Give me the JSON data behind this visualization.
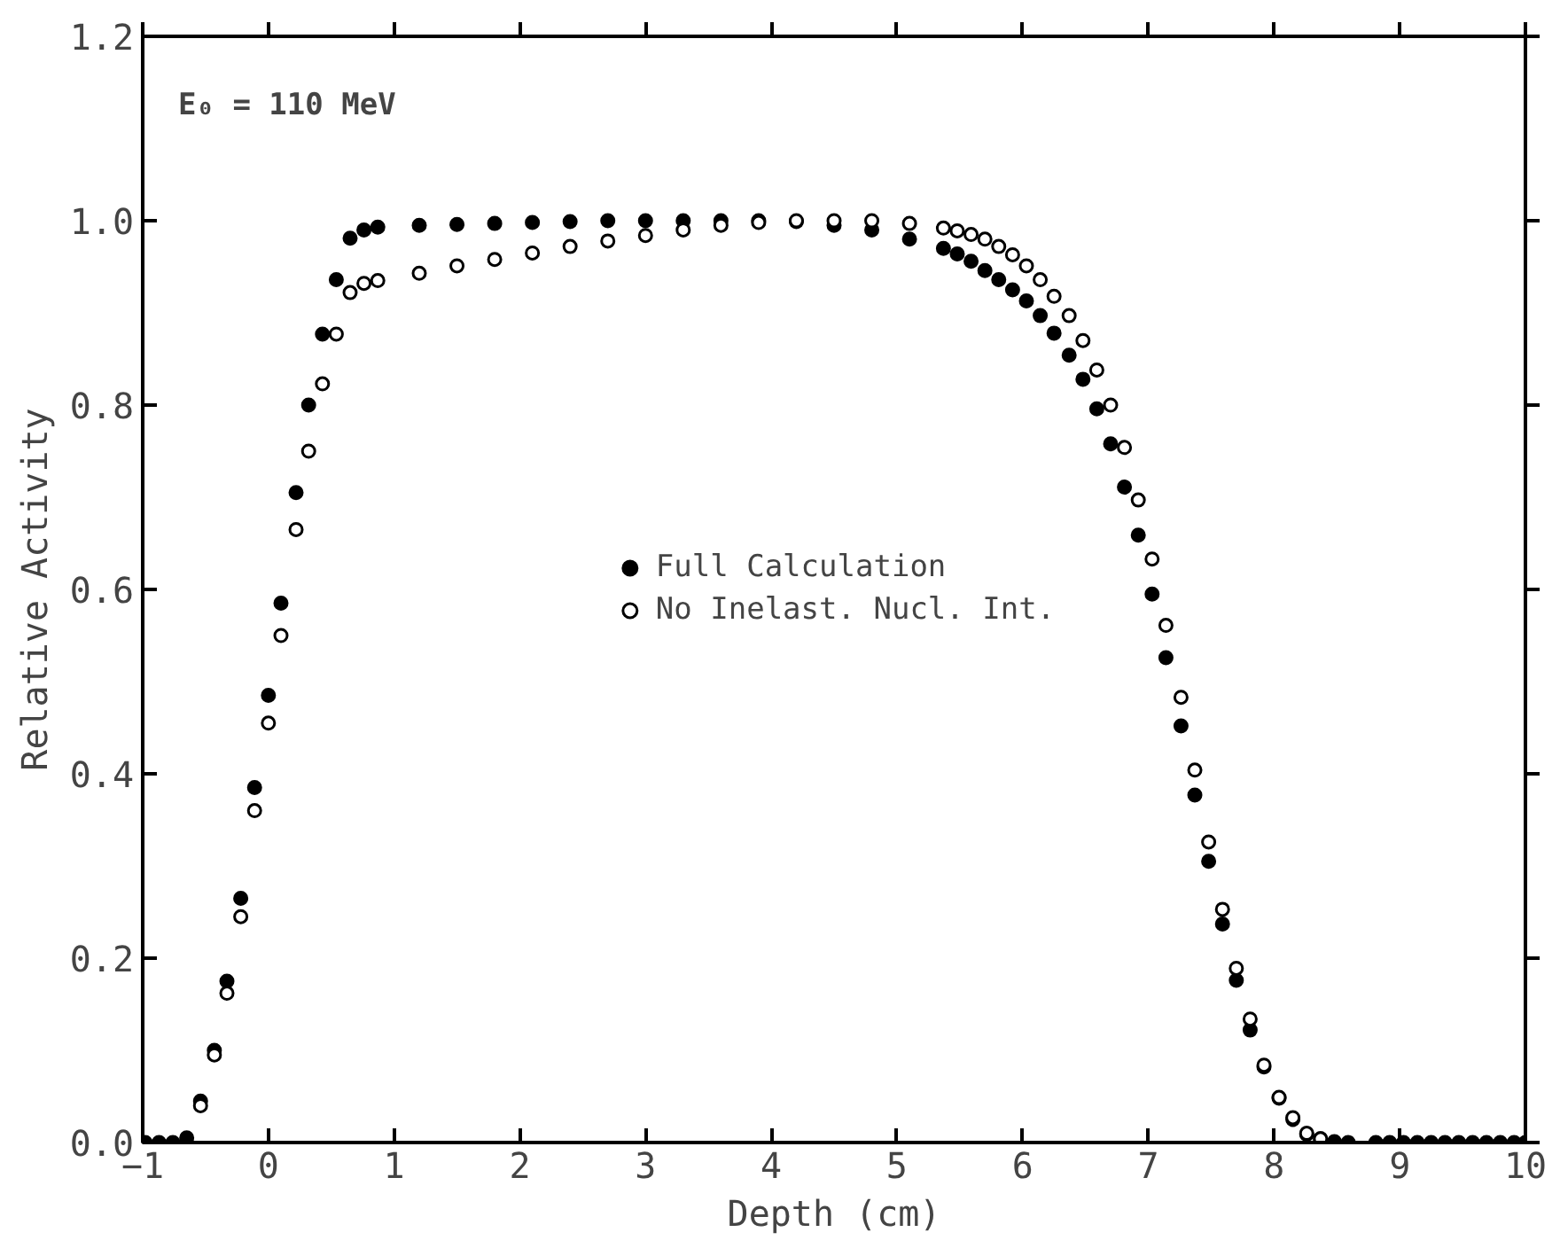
{
  "chart_data": {
    "type": "scatter",
    "xlabel": "Depth (cm)",
    "ylabel": "Relative Activity",
    "annotations": [
      "E₀ = 110 MeV"
    ],
    "xlim": [
      -1,
      10
    ],
    "ylim": [
      0,
      1.2
    ],
    "xticks": [
      {
        "value": -1,
        "label": "−1"
      },
      0,
      1,
      2,
      3,
      4,
      5,
      6,
      7,
      8,
      9,
      10
    ],
    "yticks": [
      {
        "value": 0,
        "label": "0.0"
      },
      {
        "value": 0.2,
        "label": "0.2"
      },
      {
        "value": 0.4,
        "label": "0.4"
      },
      {
        "value": 0.6,
        "label": "0.6"
      },
      {
        "value": 0.8,
        "label": "0.8"
      },
      {
        "value": 1.0,
        "label": "1.0"
      },
      {
        "value": 1.2,
        "label": "1.2"
      }
    ],
    "grid": false,
    "legend": "center",
    "series": [
      {
        "name": "Full Calculation",
        "color": "#000000",
        "marker": "circle",
        "x": [
          -0.98,
          -0.87,
          -0.76,
          -0.65,
          -0.54,
          -0.43,
          -0.33,
          -0.22,
          -0.11,
          0.0,
          0.1,
          0.22,
          0.32,
          0.43,
          0.54,
          0.65,
          0.76,
          0.87,
          1.2,
          1.5,
          1.8,
          2.1,
          2.4,
          2.7,
          3.0,
          3.3,
          3.6,
          3.9,
          4.2,
          4.5,
          4.8,
          5.1,
          5.37,
          5.48,
          5.59,
          5.7,
          5.81,
          5.92,
          6.03,
          6.14,
          6.25,
          6.37,
          6.48,
          6.59,
          6.7,
          6.81,
          6.92,
          7.03,
          7.14,
          7.26,
          7.37,
          7.48,
          7.59,
          7.7,
          7.81,
          7.92,
          8.04,
          8.15,
          8.26,
          8.37,
          8.48,
          8.59,
          8.81,
          8.92,
          9.03,
          9.14,
          9.25,
          9.36,
          9.47,
          9.58,
          9.69,
          9.8,
          9.91,
          10.0
        ],
        "values": [
          0,
          0,
          0,
          0.005,
          0.045,
          0.1,
          0.175,
          0.265,
          0.385,
          0.485,
          0.585,
          0.705,
          0.8,
          0.877,
          0.936,
          0.981,
          0.99,
          0.993,
          0.995,
          0.996,
          0.997,
          0.998,
          0.999,
          1.0,
          1.0,
          1.0,
          1.0,
          1.0,
          0.999,
          0.995,
          0.99,
          0.98,
          0.97,
          0.964,
          0.956,
          0.946,
          0.936,
          0.925,
          0.913,
          0.897,
          0.878,
          0.854,
          0.828,
          0.796,
          0.758,
          0.711,
          0.659,
          0.595,
          0.526,
          0.452,
          0.377,
          0.305,
          0.237,
          0.176,
          0.122,
          0.082,
          0.048,
          0.025,
          0.009,
          0.004,
          0.001,
          0,
          0,
          0,
          0,
          0,
          0,
          0,
          0,
          0,
          0,
          0,
          0,
          0
        ]
      },
      {
        "name": "No Inelast. Nucl. Int.",
        "color": "#000000",
        "marker": "circle_open",
        "x": [
          -0.54,
          -0.43,
          -0.33,
          -0.22,
          -0.11,
          0.0,
          0.1,
          0.22,
          0.32,
          0.43,
          0.54,
          0.65,
          0.76,
          0.87,
          1.2,
          1.5,
          1.8,
          2.1,
          2.4,
          2.7,
          3.0,
          3.3,
          3.6,
          3.9,
          4.2,
          4.5,
          4.8,
          5.1,
          5.37,
          5.48,
          5.59,
          5.7,
          5.81,
          5.92,
          6.03,
          6.14,
          6.25,
          6.37,
          6.48,
          6.59,
          6.7,
          6.81,
          6.92,
          7.03,
          7.14,
          7.26,
          7.37,
          7.48,
          7.59,
          7.7,
          7.81,
          7.92,
          8.04,
          8.15,
          8.26,
          8.37
        ],
        "values": [
          0.04,
          0.095,
          0.162,
          0.245,
          0.36,
          0.455,
          0.55,
          0.665,
          0.75,
          0.823,
          0.877,
          0.922,
          0.932,
          0.935,
          0.943,
          0.951,
          0.958,
          0.965,
          0.972,
          0.978,
          0.984,
          0.99,
          0.995,
          0.998,
          1.0,
          1.0,
          1.0,
          0.997,
          0.992,
          0.989,
          0.985,
          0.98,
          0.972,
          0.963,
          0.951,
          0.936,
          0.918,
          0.897,
          0.87,
          0.838,
          0.8,
          0.754,
          0.697,
          0.633,
          0.561,
          0.483,
          0.404,
          0.326,
          0.253,
          0.189,
          0.134,
          0.084,
          0.049,
          0.027,
          0.01,
          0.004
        ]
      }
    ]
  }
}
